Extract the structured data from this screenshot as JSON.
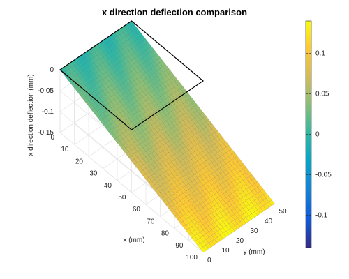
{
  "chart_data": {
    "type": "surface",
    "title": "x direction deflection comparison",
    "xlabel": "x (mm)",
    "ylabel": "y (mm)",
    "zlabel": "x direction deflection (mm)",
    "x_ticks": [
      "0",
      "10",
      "20",
      "30",
      "40",
      "50",
      "60",
      "70",
      "80",
      "90",
      "100"
    ],
    "y_ticks": [
      "0",
      "10",
      "20",
      "30",
      "40",
      "50"
    ],
    "z_ticks": [
      "0",
      "-0.05",
      "-0.1",
      "-0.15"
    ],
    "xlim": [
      0,
      100
    ],
    "ylim": [
      0,
      50
    ],
    "zlim": [
      -0.15,
      0
    ],
    "colorbar": {
      "ticks": [
        "0.1",
        "0.05",
        "0",
        "-0.05",
        "-0.1"
      ],
      "range": [
        -0.14,
        0.14
      ],
      "colormap": "parula"
    },
    "series": [
      {
        "type": "mesh-surface",
        "description_free": true,
        "x": [
          0,
          100
        ],
        "y": [
          0,
          50
        ],
        "z_at_x": [
          [
            0,
            0.0
          ],
          [
            100,
            -0.15
          ]
        ],
        "color_at_x": [
          [
            0,
            0.0
          ],
          [
            50,
            0.06
          ],
          [
            100,
            0.13
          ]
        ]
      },
      {
        "type": "outline",
        "color": "#000000",
        "corners": [
          [
            0,
            0,
            0
          ],
          [
            0,
            50,
            0
          ],
          [
            50,
            50,
            0
          ],
          [
            50,
            0,
            0
          ]
        ]
      }
    ],
    "grid": true
  }
}
